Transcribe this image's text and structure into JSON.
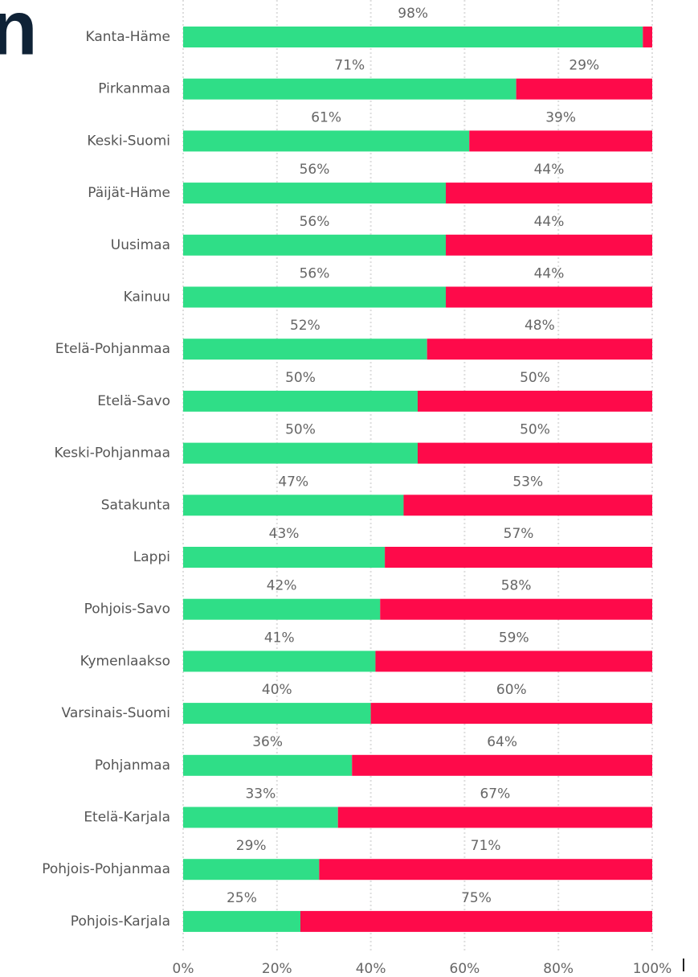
{
  "chart_data": {
    "type": "stacked_bar_horizontal",
    "title": "n",
    "categories": [
      "Kanta-Häme",
      "Pirkanmaa",
      "Keski-Suomi",
      "Päijät-Häme",
      "Uusimaa",
      "Kainuu",
      "Etelä-Pohjanmaa",
      "Etelä-Savo",
      "Keski-Pohjanmaa",
      "Satakunta",
      "Lappi",
      "Pohjois-Savo",
      "Kymenlaakso",
      "Varsinais-Suomi",
      "Pohjanmaa",
      "Etelä-Karjala",
      "Pohjois-Pohjanmaa",
      "Pohjois-Karjala"
    ],
    "series": [
      {
        "color": "#2fde87",
        "values": [
          98,
          71,
          61,
          56,
          56,
          56,
          52,
          50,
          50,
          47,
          43,
          42,
          41,
          40,
          36,
          33,
          29,
          25
        ],
        "value_labels": [
          "98%",
          "71%",
          "61%",
          "56%",
          "56%",
          "56%",
          "52%",
          "50%",
          "50%",
          "47%",
          "43%",
          "42%",
          "41%",
          "40%",
          "36%",
          "33%",
          "29%",
          "25%"
        ]
      },
      {
        "color": "#fe0a4a",
        "values": [
          2,
          29,
          39,
          44,
          44,
          44,
          48,
          50,
          50,
          53,
          57,
          58,
          59,
          60,
          64,
          67,
          71,
          75
        ],
        "value_labels": [
          null,
          "29%",
          "39%",
          "44%",
          "44%",
          "44%",
          "48%",
          "50%",
          "50%",
          "53%",
          "57%",
          "58%",
          "59%",
          "60%",
          "64%",
          "67%",
          "71%",
          "75%"
        ]
      }
    ],
    "xlim": [
      0,
      100
    ],
    "xticks": [
      {
        "value": 0,
        "label": "0%"
      },
      {
        "value": 20,
        "label": "20%"
      },
      {
        "value": 40,
        "label": "40%"
      },
      {
        "value": 60,
        "label": "60%"
      },
      {
        "value": 80,
        "label": "80%"
      },
      {
        "value": 100,
        "label": "100%"
      }
    ],
    "grid": true
  }
}
